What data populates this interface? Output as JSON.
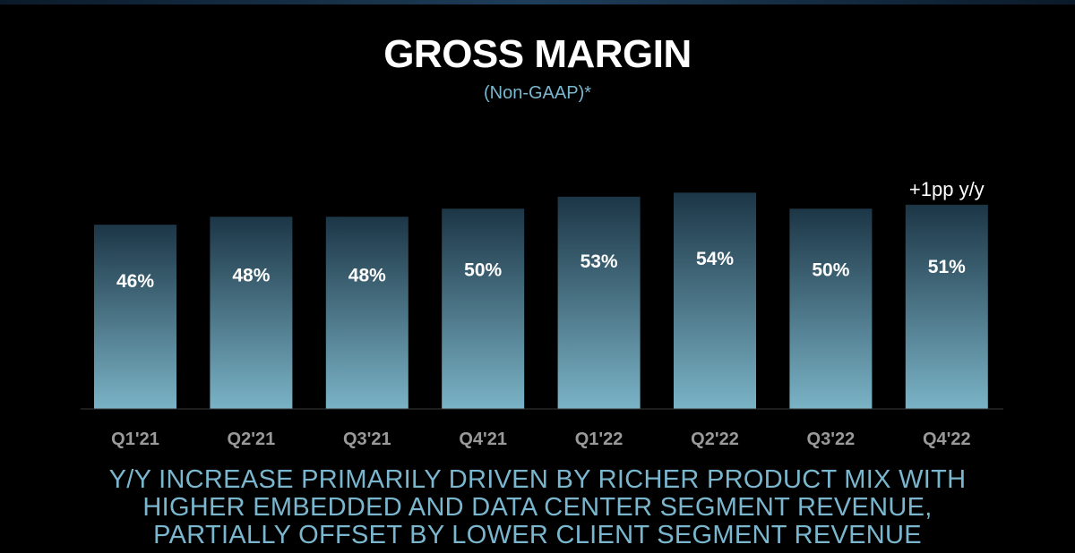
{
  "colors": {
    "background": "#000000",
    "bar_top": "#1c3646",
    "bar_bottom": "#7ab3c6",
    "accent_text": "#7ab7cf"
  },
  "chart_data": {
    "type": "bar",
    "title": "GROSS MARGIN",
    "subtitle": "(Non-GAAP)*",
    "categories": [
      "Q1'21",
      "Q2'21",
      "Q3'21",
      "Q4'21",
      "Q1'22",
      "Q2'22",
      "Q3'22",
      "Q4'22"
    ],
    "values": [
      46,
      48,
      48,
      50,
      53,
      54,
      50,
      51
    ],
    "value_labels": [
      "46%",
      "48%",
      "48%",
      "50%",
      "53%",
      "54%",
      "50%",
      "51%"
    ],
    "annotation": {
      "text": "+1pp y/y",
      "category": "Q4'22"
    },
    "xlabel": "",
    "ylabel": "",
    "ylim": [
      0,
      61
    ],
    "grid": false,
    "legend": "none"
  },
  "footnote": {
    "lines": [
      "Y/Y INCREASE PRIMARILY DRIVEN BY RICHER PRODUCT MIX WITH",
      "HIGHER EMBEDDED AND DATA CENTER SEGMENT REVENUE,",
      "PARTIALLY OFFSET BY LOWER CLIENT SEGMENT REVENUE"
    ]
  }
}
